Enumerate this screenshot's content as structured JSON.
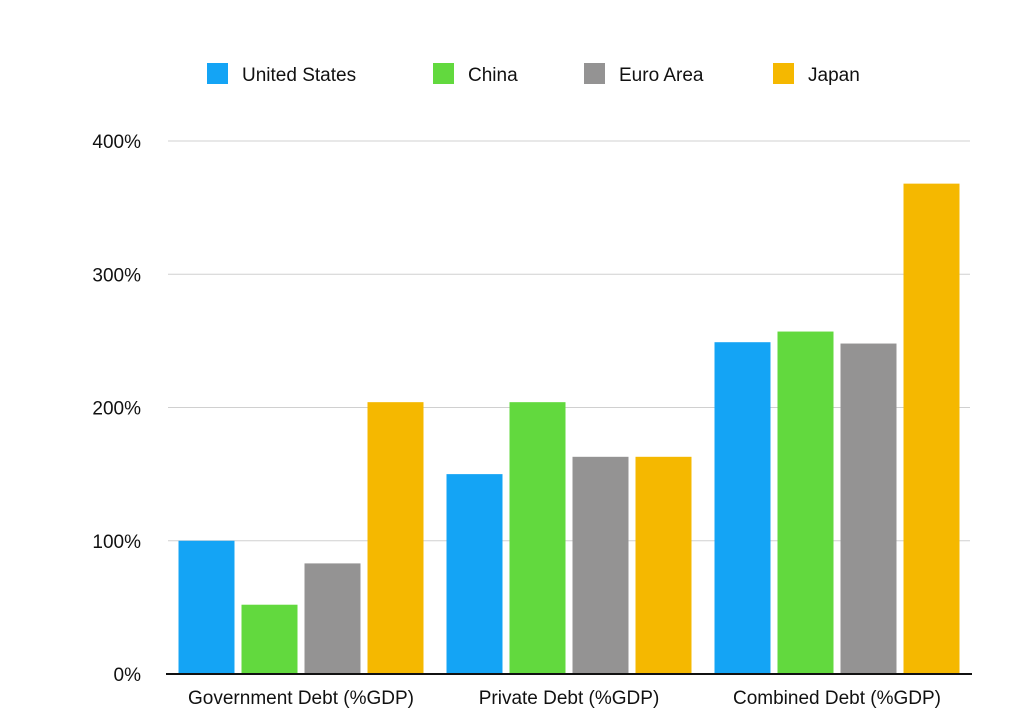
{
  "chart_data": {
    "type": "bar",
    "title": "",
    "xlabel": "",
    "ylabel": "",
    "categories": [
      "Government Debt (%GDP)",
      "Private Debt (%GDP)",
      "Combined Debt (%GDP)"
    ],
    "series": [
      {
        "name": "United States",
        "color": "#14A4F5",
        "values": [
          100,
          150,
          249
        ]
      },
      {
        "name": "China",
        "color": "#62D93E",
        "values": [
          52,
          204,
          257
        ]
      },
      {
        "name": "Euro Area",
        "color": "#949393",
        "values": [
          83,
          163,
          248
        ]
      },
      {
        "name": "Japan",
        "color": "#F5B800",
        "values": [
          204,
          163,
          368
        ]
      }
    ],
    "ylim": [
      0,
      400
    ],
    "yticks": [
      0,
      100,
      200,
      300,
      400
    ],
    "ytick_labels": [
      "0%",
      "100%",
      "200%",
      "300%",
      "400%"
    ],
    "grid": true,
    "legend_position": "top"
  }
}
